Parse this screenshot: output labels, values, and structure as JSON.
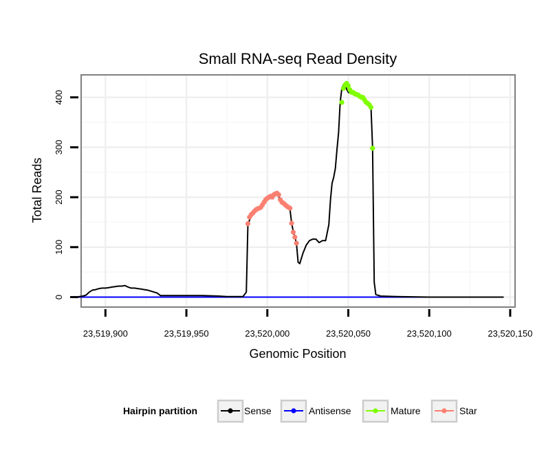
{
  "chart_data": {
    "type": "line",
    "title": "Small RNA-seq Read Density",
    "xlabel": "Genomic Position",
    "ylabel": "Total Reads",
    "xlim": [
      23519885,
      23520153
    ],
    "ylim": [
      -20,
      445
    ],
    "x_ticks": [
      23519900,
      23519950,
      23520000,
      23520050,
      23520100,
      23520150
    ],
    "x_tick_labels": [
      "23,519,900",
      "23,519,950",
      "23,520,000",
      "23,520,050",
      "23,520,100",
      "23,520,150"
    ],
    "y_ticks": [
      0,
      100,
      200,
      300,
      400
    ],
    "y_tick_labels": [
      "0",
      "100",
      "200",
      "300",
      "400"
    ],
    "grid": true,
    "legend": {
      "title": "Hairpin partition",
      "position": "bottom",
      "entries": [
        {
          "label": "Sense",
          "color": "#000000"
        },
        {
          "label": "Antisense",
          "color": "#0000ff"
        },
        {
          "label": "Mature",
          "color": "#7fff00"
        },
        {
          "label": "Star",
          "color": "#fa8072"
        }
      ]
    },
    "series": [
      {
        "name": "Sense",
        "color": "#000000",
        "marker": "none",
        "x": [
          23519882,
          23519886,
          23519888,
          23519890,
          23519892,
          23519894,
          23519896,
          23519898,
          23519900,
          23519902,
          23519904,
          23519906,
          23519908,
          23519910,
          23519912,
          23519914,
          23519916,
          23519918,
          23519920,
          23519922,
          23519924,
          23519926,
          23519928,
          23519930,
          23519932,
          23519934,
          23519936,
          23519938,
          23519940,
          23519942,
          23519944,
          23519946,
          23519948,
          23519950,
          23519960,
          23519970,
          23519975,
          23519980,
          23519985,
          23519987,
          23519988,
          23519990,
          23519992,
          23519994,
          23519996,
          23519998,
          23520000,
          23520002,
          23520004,
          23520006,
          23520008,
          23520010,
          23520012,
          23520014,
          23520015,
          23520016,
          23520017,
          23520018,
          23520019,
          23520020,
          23520022,
          23520024,
          23520026,
          23520028,
          23520030,
          23520032,
          23520034,
          23520036,
          23520038,
          23520039,
          23520040,
          23520041,
          23520042,
          23520043,
          23520044,
          23520045,
          23520046,
          23520047,
          23520048,
          23520050,
          23520052,
          23520054,
          23520056,
          23520058,
          23520060,
          23520062,
          23520063,
          23520064,
          23520065,
          23520066,
          23520067,
          23520070,
          23520080,
          23520100,
          23520120,
          23520140,
          23520146
        ],
        "y": [
          0,
          2,
          4,
          10,
          14,
          15,
          17,
          18,
          18,
          19,
          20,
          21,
          22,
          22,
          23,
          20,
          18,
          18,
          17,
          16,
          15,
          14,
          12,
          10,
          8,
          3,
          3,
          3,
          3,
          3,
          3,
          3,
          3,
          3,
          3,
          2,
          1,
          1,
          1,
          10,
          145,
          163,
          170,
          176,
          180,
          188,
          195,
          200,
          205,
          208,
          195,
          190,
          183,
          176,
          148,
          132,
          120,
          108,
          70,
          67,
          88,
          104,
          113,
          116,
          116,
          109,
          113,
          113,
          145,
          195,
          228,
          240,
          258,
          295,
          330,
          390,
          418,
          425,
          423,
          410,
          408,
          405,
          402,
          400,
          395,
          388,
          385,
          380,
          300,
          30,
          5,
          2,
          1,
          0,
          0,
          0,
          0
        ]
      },
      {
        "name": "Antisense",
        "color": "#0000ff",
        "marker": "none",
        "x": [
          23519882,
          23520146
        ],
        "y": [
          0,
          0
        ]
      },
      {
        "name": "Mature",
        "color": "#7fff00",
        "marker": "point",
        "x": [
          23520046,
          23520047,
          23520048,
          23520049,
          23520050,
          23520051,
          23520052,
          23520053,
          23520054,
          23520055,
          23520056,
          23520057,
          23520058,
          23520059,
          23520060,
          23520061,
          23520062,
          23520063,
          23520064,
          23520065
        ],
        "y": [
          390,
          418,
          425,
          428,
          423,
          415,
          410,
          410,
          407,
          406,
          405,
          402,
          400,
          400,
          395,
          390,
          388,
          385,
          380,
          298
        ]
      },
      {
        "name": "Star",
        "color": "#fa8072",
        "marker": "point",
        "x": [
          23519988,
          23519989,
          23519990,
          23519991,
          23519992,
          23519993,
          23519994,
          23519995,
          23519996,
          23519997,
          23519998,
          23519999,
          23520000,
          23520001,
          23520002,
          23520003,
          23520004,
          23520005,
          23520006,
          23520007,
          23520008,
          23520009,
          23520010,
          23520011,
          23520012,
          23520013,
          23520014,
          23520015,
          23520016,
          23520017,
          23520018
        ],
        "y": [
          147,
          160,
          165,
          168,
          172,
          175,
          177,
          178,
          180,
          185,
          190,
          195,
          198,
          200,
          202,
          200,
          205,
          207,
          208,
          205,
          195,
          190,
          188,
          185,
          182,
          180,
          178,
          148,
          130,
          120,
          108
        ]
      }
    ]
  }
}
